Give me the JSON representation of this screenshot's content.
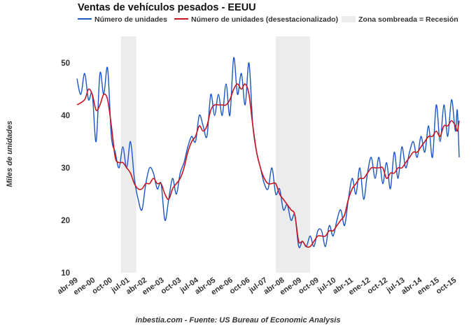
{
  "chart_data": {
    "type": "line",
    "title": "Ventas de vehículos pesados - EEUU",
    "ylabel": "Miles de unidades",
    "xlabel": "",
    "ylim": [
      10,
      55
    ],
    "yticks": [
      10,
      20,
      30,
      40,
      50
    ],
    "x_start": "abr-99",
    "x_end": "dic-15",
    "x_ticks": [
      "abr-99",
      "ene-00",
      "oct-00",
      "jul-01",
      "abr-02",
      "ene-03",
      "oct-03",
      "jul-04",
      "abr-05",
      "ene-06",
      "oct-06",
      "jul-07",
      "abr-08",
      "ene-09",
      "oct-09",
      "jul-10",
      "abr-11",
      "ene-12",
      "oct-12",
      "jul-13",
      "abr-14",
      "ene-15",
      "oct-15"
    ],
    "grid": false,
    "legend_position": "top",
    "recessions": [
      {
        "start": "mar-01",
        "end": "nov-01"
      },
      {
        "start": "dic-07",
        "end": "jun-09"
      }
    ],
    "recession_label": "Zona sombreada = Recesión",
    "series": [
      {
        "name": "Número de unidades",
        "color": "#1a56c4",
        "anchors": [
          [
            "abr-99",
            47
          ],
          [
            "jun-99",
            44
          ],
          [
            "ago-99",
            48
          ],
          [
            "oct-99",
            43
          ],
          [
            "dic-99",
            44
          ],
          [
            "feb-00",
            35
          ],
          [
            "abr-00",
            48
          ],
          [
            "jun-00",
            44
          ],
          [
            "ago-00",
            49
          ],
          [
            "oct-00",
            36
          ],
          [
            "dic-00",
            33
          ],
          [
            "feb-01",
            30
          ],
          [
            "abr-01",
            34
          ],
          [
            "jun-01",
            30
          ],
          [
            "ago-01",
            35
          ],
          [
            "oct-01",
            28
          ],
          [
            "dic-01",
            24
          ],
          [
            "feb-02",
            22
          ],
          [
            "abr-02",
            27
          ],
          [
            "jun-02",
            30
          ],
          [
            "ago-02",
            29
          ],
          [
            "oct-02",
            26
          ],
          [
            "dic-02",
            27
          ],
          [
            "feb-03",
            20
          ],
          [
            "abr-03",
            24
          ],
          [
            "jun-03",
            28
          ],
          [
            "ago-03",
            25
          ],
          [
            "oct-03",
            29
          ],
          [
            "dic-03",
            31
          ],
          [
            "feb-04",
            34
          ],
          [
            "abr-04",
            36
          ],
          [
            "jun-04",
            35
          ],
          [
            "ago-04",
            40
          ],
          [
            "oct-04",
            38
          ],
          [
            "dic-04",
            36
          ],
          [
            "feb-05",
            44
          ],
          [
            "abr-05",
            40
          ],
          [
            "jun-05",
            44
          ],
          [
            "ago-05",
            40
          ],
          [
            "oct-05",
            46
          ],
          [
            "dic-05",
            40
          ],
          [
            "feb-06",
            51
          ],
          [
            "abr-06",
            44
          ],
          [
            "jun-06",
            48
          ],
          [
            "ago-06",
            42
          ],
          [
            "oct-06",
            50
          ],
          [
            "dic-06",
            38
          ],
          [
            "feb-07",
            33
          ],
          [
            "abr-07",
            30
          ],
          [
            "jun-07",
            27
          ],
          [
            "ago-07",
            26
          ],
          [
            "oct-07",
            30
          ],
          [
            "dic-07",
            25
          ],
          [
            "feb-08",
            26
          ],
          [
            "abr-08",
            22
          ],
          [
            "jun-08",
            23
          ],
          [
            "ago-08",
            20
          ],
          [
            "oct-08",
            21
          ],
          [
            "dic-08",
            15
          ],
          [
            "feb-09",
            16
          ],
          [
            "abr-09",
            15
          ],
          [
            "jun-09",
            17
          ],
          [
            "ago-09",
            15
          ],
          [
            "oct-09",
            18
          ],
          [
            "dic-09",
            18
          ],
          [
            "feb-10",
            15
          ],
          [
            "abr-10",
            19
          ],
          [
            "jun-10",
            17
          ],
          [
            "ago-10",
            20
          ],
          [
            "oct-10",
            22
          ],
          [
            "dic-10",
            19
          ],
          [
            "feb-11",
            24
          ],
          [
            "abr-11",
            28
          ],
          [
            "jun-11",
            25
          ],
          [
            "ago-11",
            30
          ],
          [
            "oct-11",
            24
          ],
          [
            "dic-11",
            29
          ],
          [
            "feb-12",
            32
          ],
          [
            "abr-12",
            28
          ],
          [
            "jun-12",
            32
          ],
          [
            "ago-12",
            27
          ],
          [
            "oct-12",
            31
          ],
          [
            "dic-12",
            26
          ],
          [
            "feb-13",
            33
          ],
          [
            "abr-13",
            28
          ],
          [
            "jun-13",
            34
          ],
          [
            "ago-13",
            30
          ],
          [
            "oct-13",
            33
          ],
          [
            "dic-13",
            35
          ],
          [
            "feb-14",
            32
          ],
          [
            "abr-14",
            36
          ],
          [
            "jun-14",
            33
          ],
          [
            "ago-14",
            38
          ],
          [
            "oct-14",
            32
          ],
          [
            "dic-14",
            42
          ],
          [
            "feb-15",
            35
          ],
          [
            "abr-15",
            42
          ],
          [
            "jun-15",
            36
          ],
          [
            "ago-15",
            43
          ],
          [
            "oct-15",
            37
          ],
          [
            "nov-15",
            41
          ],
          [
            "dic-15",
            32
          ]
        ]
      },
      {
        "name": "Número de unidades (desestacionalizado)",
        "color": "#c8141e",
        "anchors": [
          [
            "abr-99",
            42
          ],
          [
            "ago-99",
            43
          ],
          [
            "oct-99",
            45
          ],
          [
            "dic-99",
            44
          ],
          [
            "feb-00",
            41
          ],
          [
            "abr-00",
            42
          ],
          [
            "jun-00",
            44
          ],
          [
            "ago-00",
            43
          ],
          [
            "oct-00",
            38
          ],
          [
            "dic-00",
            32
          ],
          [
            "feb-01",
            31
          ],
          [
            "abr-01",
            31
          ],
          [
            "jun-01",
            30
          ],
          [
            "ago-01",
            29
          ],
          [
            "oct-01",
            27
          ],
          [
            "dic-01",
            26
          ],
          [
            "feb-02",
            26
          ],
          [
            "abr-02",
            27
          ],
          [
            "jun-02",
            27
          ],
          [
            "ago-02",
            28
          ],
          [
            "oct-02",
            27
          ],
          [
            "dic-02",
            27
          ],
          [
            "feb-03",
            25
          ],
          [
            "abr-03",
            24
          ],
          [
            "jun-03",
            26
          ],
          [
            "ago-03",
            27
          ],
          [
            "oct-03",
            28
          ],
          [
            "dic-03",
            30
          ],
          [
            "feb-04",
            33
          ],
          [
            "abr-04",
            35
          ],
          [
            "jun-04",
            36
          ],
          [
            "ago-04",
            38
          ],
          [
            "oct-04",
            37
          ],
          [
            "dic-04",
            38
          ],
          [
            "feb-05",
            41
          ],
          [
            "abr-05",
            42
          ],
          [
            "jun-05",
            42
          ],
          [
            "ago-05",
            42
          ],
          [
            "oct-05",
            42
          ],
          [
            "dic-05",
            43
          ],
          [
            "feb-06",
            45
          ],
          [
            "abr-06",
            46
          ],
          [
            "jun-06",
            45
          ],
          [
            "ago-06",
            46
          ],
          [
            "oct-06",
            44
          ],
          [
            "dic-06",
            38
          ],
          [
            "feb-07",
            33
          ],
          [
            "abr-07",
            30
          ],
          [
            "jun-07",
            28
          ],
          [
            "ago-07",
            27
          ],
          [
            "oct-07",
            27
          ],
          [
            "dic-07",
            27
          ],
          [
            "feb-08",
            25
          ],
          [
            "abr-08",
            24
          ],
          [
            "jun-08",
            23
          ],
          [
            "ago-08",
            22
          ],
          [
            "oct-08",
            21
          ],
          [
            "dic-08",
            16
          ],
          [
            "feb-09",
            16
          ],
          [
            "abr-09",
            15
          ],
          [
            "jun-09",
            15
          ],
          [
            "ago-09",
            16
          ],
          [
            "oct-09",
            17
          ],
          [
            "dic-09",
            17
          ],
          [
            "feb-10",
            17
          ],
          [
            "abr-10",
            18
          ],
          [
            "jun-10",
            18
          ],
          [
            "ago-10",
            19
          ],
          [
            "oct-10",
            20
          ],
          [
            "dic-10",
            21
          ],
          [
            "feb-11",
            24
          ],
          [
            "abr-11",
            26
          ],
          [
            "jun-11",
            27
          ],
          [
            "ago-11",
            28
          ],
          [
            "oct-11",
            28
          ],
          [
            "dic-11",
            29
          ],
          [
            "feb-12",
            30
          ],
          [
            "abr-12",
            30
          ],
          [
            "jun-12",
            30
          ],
          [
            "ago-12",
            30
          ],
          [
            "oct-12",
            28
          ],
          [
            "dic-12",
            29
          ],
          [
            "feb-13",
            29
          ],
          [
            "abr-13",
            30
          ],
          [
            "jun-13",
            30
          ],
          [
            "ago-13",
            31
          ],
          [
            "oct-13",
            32
          ],
          [
            "dic-13",
            33
          ],
          [
            "feb-14",
            33
          ],
          [
            "abr-14",
            34
          ],
          [
            "jun-14",
            35
          ],
          [
            "ago-14",
            36
          ],
          [
            "oct-14",
            36
          ],
          [
            "dic-14",
            37
          ],
          [
            "feb-15",
            36
          ],
          [
            "abr-15",
            38
          ],
          [
            "jun-15",
            38
          ],
          [
            "ago-15",
            39
          ],
          [
            "oct-15",
            38
          ],
          [
            "nov-15",
            37
          ],
          [
            "dic-15",
            39
          ]
        ]
      }
    ]
  },
  "source": "inbestia.com - Fuente: US Bureau of Economic Analysis"
}
